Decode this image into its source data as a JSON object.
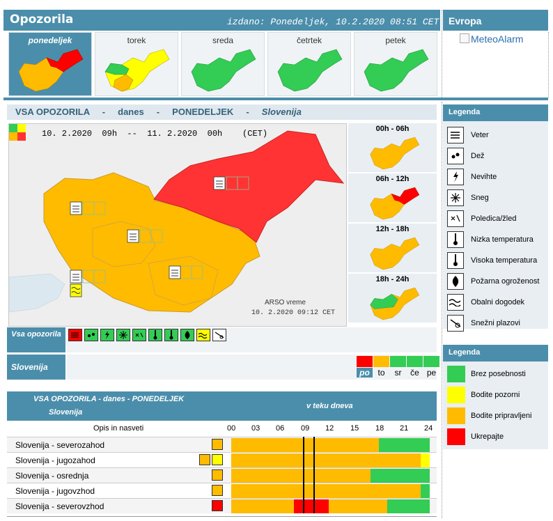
{
  "header": {
    "title": "Opozorila",
    "issued": "izdano: Ponedeljek, 10.2.2020 08:51 CET",
    "europe": "Evropa",
    "meteoalarm": "MeteoAlarm"
  },
  "days": [
    {
      "label": "ponedeljek",
      "selected": true
    },
    {
      "label": "torek"
    },
    {
      "label": "sreda"
    },
    {
      "label": "četrtek"
    },
    {
      "label": "petek"
    }
  ],
  "section": {
    "t1": "VSA OPOZORILA",
    "d1": "-",
    "t2": "danes",
    "d2": "-",
    "t3": "PONEDELJEK",
    "d3": "-",
    "t4": "Slovenija"
  },
  "map": {
    "validity": "10. 2.2020  09h  --  11. 2.2020  00h    (CET)",
    "source": "ARSO vreme",
    "stamp": "10. 2.2020  09:12 CET"
  },
  "segments": [
    "00h - 06h",
    "06h - 12h",
    "12h - 18h",
    "18h - 24h"
  ],
  "rows_left": {
    "all_warnings": "Vsa opozorila",
    "slovenia": "Slovenija"
  },
  "day_codes": [
    "po",
    "to",
    "sr",
    "če",
    "pe"
  ],
  "legend1": {
    "title": "Legenda",
    "items": [
      "Veter",
      "Dež",
      "Nevihte",
      "Sneg",
      "Poledica/žled",
      "Nizka temperatura",
      "Visoka temperatura",
      "Požarna ogroženost",
      "Obalni dogodek",
      "Snežni plazovi"
    ]
  },
  "legend2": {
    "title": "Legenda",
    "items": [
      "Brez posebnosti",
      "Bodite pozorni",
      "Bodite pripravljeni",
      "Ukrepajte"
    ],
    "colors": [
      "#33cc55",
      "#ffff00",
      "#ffbb00",
      "#ff0000"
    ]
  },
  "table": {
    "title": "VSA OPOZORILA - danes - PONEDELJEK",
    "subtitle": "Slovenija",
    "teku": "v teku dneva",
    "col_label": "Opis in nasveti",
    "hours": [
      "00",
      "03",
      "06",
      "09",
      "12",
      "15",
      "18",
      "21",
      "24"
    ],
    "rows": [
      {
        "name": "Slovenija - severozahod"
      },
      {
        "name": "Slovenija - jugozahod"
      },
      {
        "name": "Slovenija - osrednja"
      },
      {
        "name": "Slovenija - jugovzhod"
      },
      {
        "name": "Slovenija - severovzhod"
      }
    ]
  }
}
